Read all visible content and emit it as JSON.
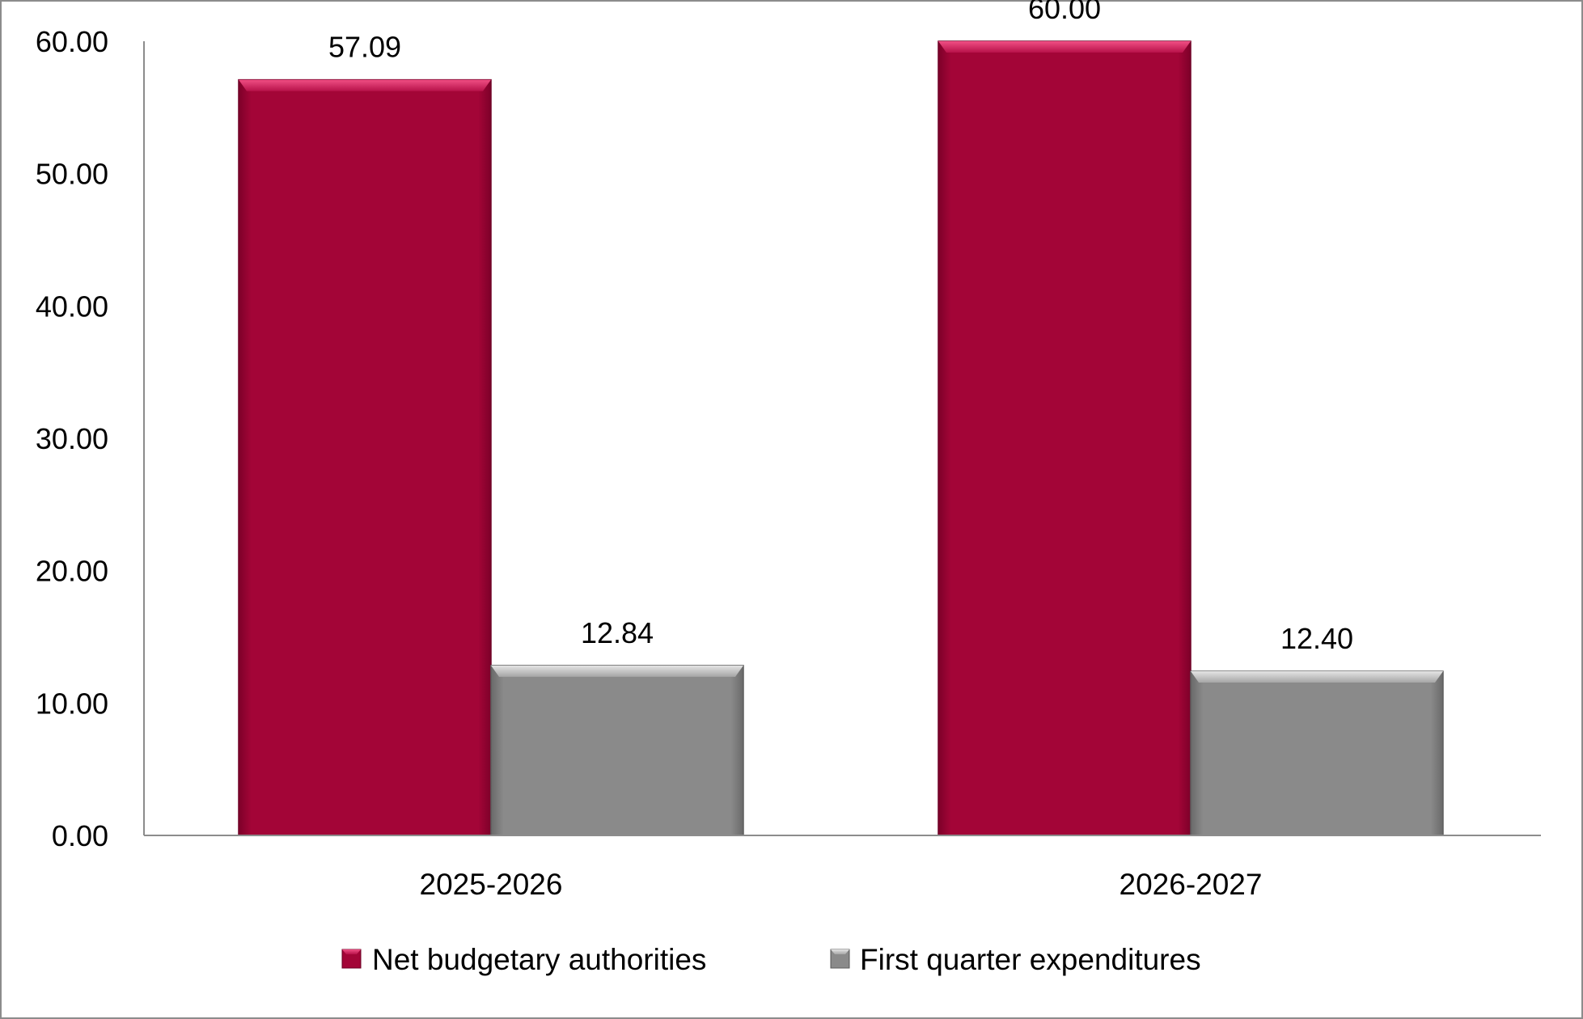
{
  "chart_data": {
    "type": "bar",
    "categories": [
      "2025-2026",
      "2026-2027"
    ],
    "series": [
      {
        "name": "Net budgetary authorities",
        "values": [
          57.09,
          60.0
        ],
        "labels": [
          "57.09",
          "60.00"
        ],
        "color": "#a30537"
      },
      {
        "name": "First quarter expenditures",
        "values": [
          12.84,
          12.4
        ],
        "labels": [
          "12.84",
          "12.40"
        ],
        "color": "#888888"
      }
    ],
    "y_ticks": [
      "0.00",
      "10.00",
      "20.00",
      "30.00",
      "40.00",
      "50.00",
      "60.00"
    ],
    "ylim": [
      0,
      60
    ],
    "grid": false,
    "legend_position": "bottom"
  }
}
